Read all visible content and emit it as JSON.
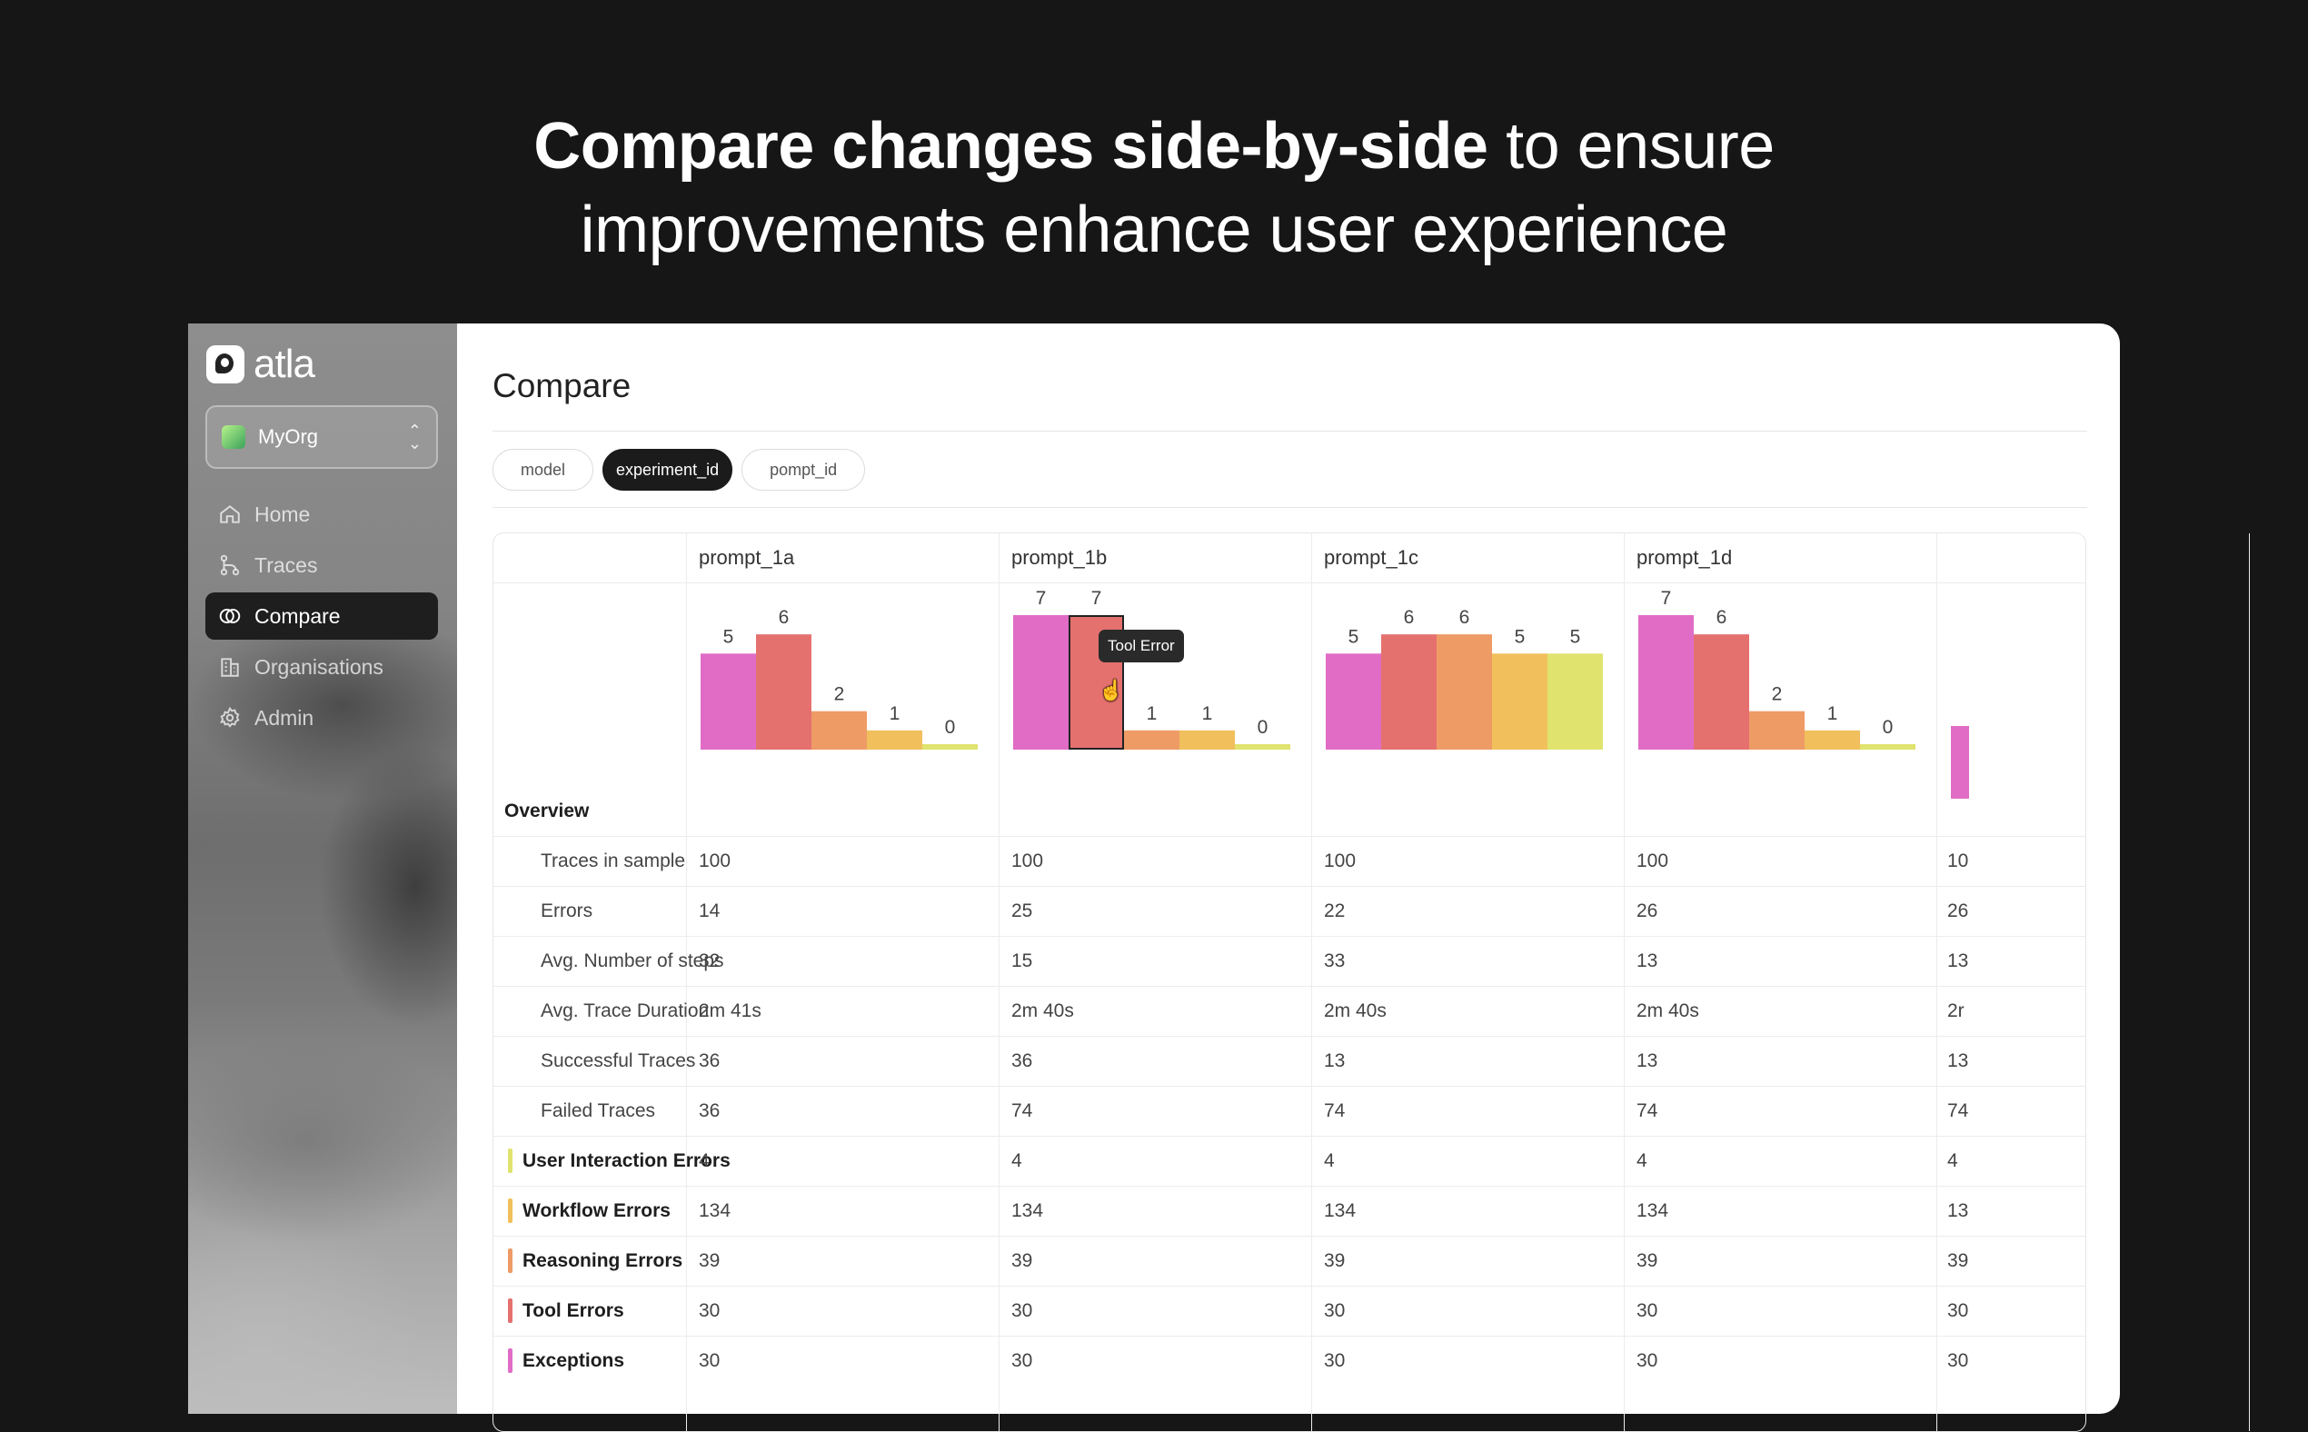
{
  "hero": {
    "bold": "Compare changes side-by-side",
    "light1": "to ensure",
    "light2": "improvements enhance user experience"
  },
  "app": {
    "logo": "atla"
  },
  "org": {
    "name": "MyOrg",
    "chevron": "◇"
  },
  "nav": [
    {
      "label": "Home",
      "icon": "home-icon",
      "active": false
    },
    {
      "label": "Traces",
      "icon": "traces-icon",
      "active": false
    },
    {
      "label": "Compare",
      "icon": "compare-icon",
      "active": true
    },
    {
      "label": "Organisations",
      "icon": "buildings-icon",
      "active": false
    },
    {
      "label": "Admin",
      "icon": "gear-icon",
      "active": false
    }
  ],
  "page": {
    "title": "Compare"
  },
  "filters": [
    {
      "label": "model",
      "active": false
    },
    {
      "label": "experiment_id",
      "active": true
    },
    {
      "label": "pompt_id",
      "active": false
    }
  ],
  "colors": {
    "exceptions": "#e06cc6",
    "tool_errors": "#e5716f",
    "reasoning_errors": "#ee9b66",
    "workflow_errors": "#f1bf5c",
    "user_interaction_errors": "#e0e36e"
  },
  "tooltip": {
    "text": "Tool Error"
  },
  "chart_data": {
    "type": "bar",
    "categories": [
      "Exceptions",
      "Tool Errors",
      "Reasoning Errors",
      "Workflow Errors",
      "User Interaction Errors"
    ],
    "series": [
      {
        "name": "prompt_1a",
        "values": [
          5,
          6,
          2,
          1,
          0
        ]
      },
      {
        "name": "prompt_1b",
        "values": [
          7,
          7,
          1,
          1,
          0
        ]
      },
      {
        "name": "prompt_1c",
        "values": [
          5,
          6,
          6,
          5,
          5
        ]
      },
      {
        "name": "prompt_1d",
        "values": [
          7,
          6,
          2,
          1,
          0
        ]
      }
    ],
    "ylim": [
      0,
      7
    ]
  },
  "table": {
    "columns": [
      "prompt_1a",
      "prompt_1b",
      "prompt_1c",
      "prompt_1d"
    ],
    "overview_label": "Overview",
    "rows": [
      {
        "label": "Traces in sample",
        "kind": "sub",
        "values": [
          "100",
          "100",
          "100",
          "100"
        ],
        "partial": "10"
      },
      {
        "label": "Errors",
        "kind": "sub",
        "values": [
          "14",
          "25",
          "22",
          "26"
        ],
        "partial": "26"
      },
      {
        "label": "Avg. Number of steps",
        "kind": "sub",
        "values": [
          "32",
          "15",
          "33",
          "13"
        ],
        "partial": "13"
      },
      {
        "label": "Avg. Trace Duration",
        "kind": "sub",
        "values": [
          "2m 41s",
          "2m 40s",
          "2m 40s",
          "2m 40s"
        ],
        "partial": "2r"
      },
      {
        "label": "Successful Traces",
        "kind": "sub",
        "values": [
          "36",
          "36",
          "13",
          "13"
        ],
        "partial": "13"
      },
      {
        "label": "Failed Traces",
        "kind": "sub",
        "values": [
          "36",
          "74",
          "74",
          "74"
        ],
        "partial": "74"
      },
      {
        "label": "User Interaction Errors",
        "kind": "error",
        "color": "#e0e36e",
        "values": [
          "4",
          "4",
          "4",
          "4"
        ],
        "partial": "4"
      },
      {
        "label": "Workflow Errors",
        "kind": "error",
        "color": "#f1bf5c",
        "values": [
          "134",
          "134",
          "134",
          "134"
        ],
        "partial": "13"
      },
      {
        "label": "Reasoning Errors",
        "kind": "error",
        "color": "#ee9b66",
        "values": [
          "39",
          "39",
          "39",
          "39"
        ],
        "partial": "39"
      },
      {
        "label": "Tool Errors",
        "kind": "error",
        "color": "#e5716f",
        "values": [
          "30",
          "30",
          "30",
          "30"
        ],
        "partial": "30"
      },
      {
        "label": "Exceptions",
        "kind": "error",
        "color": "#e06cc6",
        "values": [
          "30",
          "30",
          "30",
          "30"
        ],
        "partial": "30"
      }
    ]
  }
}
